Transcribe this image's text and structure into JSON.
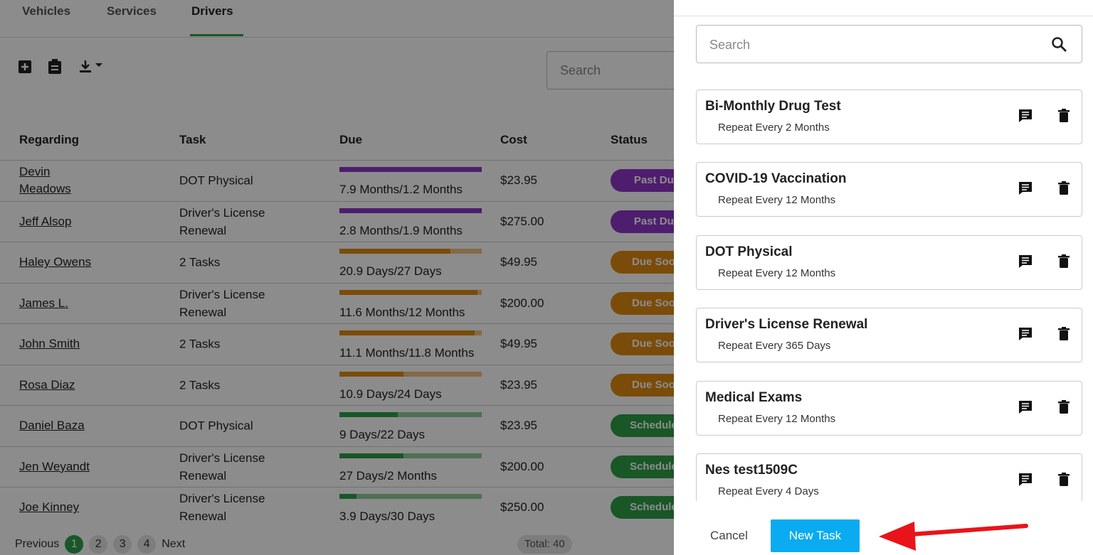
{
  "tabs": [
    "Vehicles",
    "Services",
    "Drivers"
  ],
  "active_tab": 2,
  "search_placeholder": "Search",
  "table": {
    "headers": [
      "Regarding",
      "Task",
      "Due",
      "Cost",
      "Status"
    ],
    "rows": [
      {
        "regarding": "Devin Meadows",
        "task": "DOT Physical",
        "due": "7.9 Months/1.2 Months",
        "progress": 100,
        "cost": "$23.95",
        "status": "Past Due",
        "color": "#8e35c9"
      },
      {
        "regarding": "Jeff Alsop",
        "task": "Driver's License Renewal",
        "due": "2.8 Months/1.9 Months",
        "progress": 100,
        "cost": "$275.00",
        "status": "Past Due",
        "color": "#8e35c9"
      },
      {
        "regarding": "Haley Owens",
        "task": "2 Tasks",
        "due": "20.9 Days/27 Days",
        "progress": 78,
        "cost": "$49.95",
        "status": "Due Soon",
        "color": "#e08a12"
      },
      {
        "regarding": "James L.",
        "task": "Driver's License Renewal",
        "due": "11.6 Months/12 Months",
        "progress": 97,
        "cost": "$200.00",
        "status": "Due Soon",
        "color": "#e08a12"
      },
      {
        "regarding": "John Smith",
        "task": "2 Tasks",
        "due": "11.1 Months/11.8 Months",
        "progress": 95,
        "cost": "$49.95",
        "status": "Due Soon",
        "color": "#e08a12"
      },
      {
        "regarding": "Rosa Diaz",
        "task": "2 Tasks",
        "due": "10.9 Days/24 Days",
        "progress": 45,
        "cost": "$23.95",
        "status": "Due Soon",
        "color": "#e08a12"
      },
      {
        "regarding": "Daniel Baza",
        "task": "DOT Physical",
        "due": "9 Days/22 Days",
        "progress": 41,
        "cost": "$23.95",
        "status": "Scheduled",
        "color": "#2e9e48"
      },
      {
        "regarding": "Jen Weyandt",
        "task": "Driver's License Renewal",
        "due": "27 Days/2 Months",
        "progress": 45,
        "cost": "$200.00",
        "status": "Scheduled",
        "color": "#2e9e48"
      },
      {
        "regarding": "Joe Kinney",
        "task": "Driver's License Renewal",
        "due": "3.9 Days/30 Days",
        "progress": 12,
        "cost": "$250.00",
        "status": "Scheduled",
        "color": "#2e9e48"
      }
    ]
  },
  "pagination": {
    "previous": "Previous",
    "pages": [
      "1",
      "2",
      "3",
      "4"
    ],
    "next": "Next",
    "total": "Total: 40"
  },
  "panel": {
    "search_placeholder": "Search",
    "tasks": [
      {
        "title": "Bi-Monthly Drug Test",
        "repeat": "Repeat Every 2 Months"
      },
      {
        "title": "COVID-19 Vaccination",
        "repeat": "Repeat Every 12 Months"
      },
      {
        "title": "DOT Physical",
        "repeat": "Repeat Every 12 Months"
      },
      {
        "title": "Driver's License Renewal",
        "repeat": "Repeat Every 365 Days"
      },
      {
        "title": "Medical Exams",
        "repeat": "Repeat Every 12 Months"
      },
      {
        "title": "Nes test1509C",
        "repeat": "Repeat Every 4 Days"
      }
    ],
    "cancel": "Cancel",
    "new_task": "New Task"
  }
}
